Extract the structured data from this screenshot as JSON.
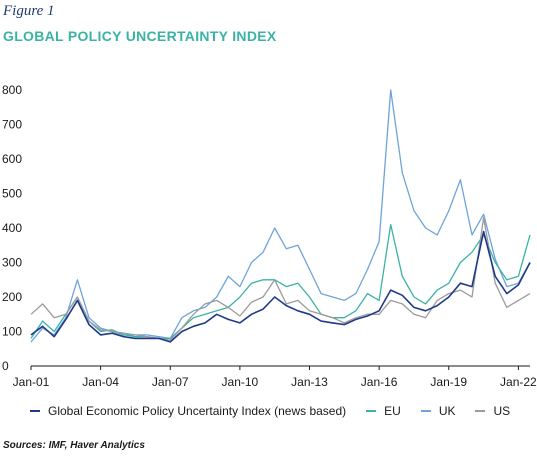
{
  "figure_label": "Figure 1",
  "chart_data": {
    "type": "line",
    "title": "GLOBAL POLICY UNCERTAINTY INDEX",
    "xlabel": "",
    "ylabel": "",
    "ylim": [
      0,
      800
    ],
    "y_ticks": [
      0,
      100,
      200,
      300,
      400,
      500,
      600,
      700,
      800
    ],
    "y_tick_labels": [
      "0",
      "100",
      "200",
      "300",
      "400",
      "500",
      "600",
      "700",
      "800"
    ],
    "x_ticks": [
      "Jan-01",
      "Jan-04",
      "Jan-07",
      "Jan-10",
      "Jan-13",
      "Jan-16",
      "Jan-19",
      "Jan-22"
    ],
    "x_range": [
      "Jan-01",
      "Jul-22"
    ],
    "grid": false,
    "legend_position": "bottom",
    "x": [
      "Jan-01",
      "Jul-01",
      "Jan-02",
      "Jul-02",
      "Jan-03",
      "Jul-03",
      "Jan-04",
      "Jul-04",
      "Jan-05",
      "Jul-05",
      "Jan-06",
      "Jul-06",
      "Jan-07",
      "Jul-07",
      "Jan-08",
      "Jul-08",
      "Jan-09",
      "Jul-09",
      "Jan-10",
      "Jul-10",
      "Jan-11",
      "Jul-11",
      "Jan-12",
      "Jul-12",
      "Jan-13",
      "Jul-13",
      "Jan-14",
      "Jul-14",
      "Jan-15",
      "Jul-15",
      "Jan-16",
      "Jul-16",
      "Jan-17",
      "Jul-17",
      "Jan-18",
      "Jul-18",
      "Jan-19",
      "Jul-19",
      "Jan-20",
      "Jul-20",
      "Jan-21",
      "Jul-21",
      "Jan-22",
      "Jul-22"
    ],
    "series": [
      {
        "name": "Global Economic Policy Uncertainty Index (news based)",
        "color": "#1f3a8a",
        "values": [
          90,
          115,
          85,
          135,
          190,
          120,
          90,
          95,
          85,
          80,
          80,
          80,
          70,
          100,
          115,
          125,
          150,
          135,
          125,
          150,
          165,
          200,
          175,
          160,
          150,
          130,
          125,
          120,
          135,
          145,
          160,
          220,
          205,
          170,
          160,
          175,
          200,
          240,
          230,
          390,
          260,
          210,
          235,
          300
        ]
      },
      {
        "name": "EU",
        "color": "#3bb3a4",
        "values": [
          80,
          130,
          100,
          150,
          200,
          130,
          100,
          105,
          90,
          85,
          85,
          80,
          80,
          110,
          140,
          150,
          160,
          170,
          200,
          240,
          250,
          250,
          230,
          240,
          200,
          150,
          140,
          140,
          160,
          210,
          190,
          410,
          260,
          200,
          180,
          220,
          240,
          300,
          330,
          380,
          300,
          250,
          260,
          380
        ]
      },
      {
        "name": "UK",
        "color": "#6fa3dc",
        "values": [
          70,
          110,
          90,
          140,
          250,
          140,
          110,
          100,
          90,
          90,
          90,
          85,
          80,
          140,
          160,
          170,
          200,
          260,
          230,
          300,
          330,
          400,
          340,
          350,
          280,
          210,
          200,
          190,
          210,
          280,
          360,
          800,
          560,
          450,
          400,
          380,
          450,
          540,
          380,
          440,
          310,
          230,
          240,
          300
        ]
      },
      {
        "name": "US",
        "color": "#9b9b9b",
        "values": [
          150,
          180,
          140,
          150,
          200,
          130,
          105,
          100,
          95,
          90,
          85,
          80,
          75,
          110,
          150,
          180,
          190,
          170,
          145,
          185,
          200,
          250,
          180,
          190,
          160,
          150,
          140,
          125,
          140,
          150,
          150,
          190,
          180,
          150,
          140,
          190,
          210,
          220,
          200,
          430,
          240,
          170,
          190,
          210
        ]
      }
    ]
  },
  "source_text": "Sources: IMF, Haver Analytics"
}
